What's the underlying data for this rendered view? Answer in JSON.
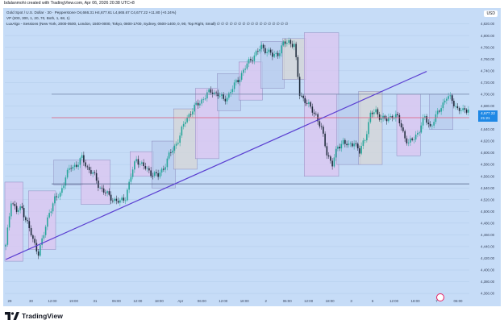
{
  "header": {
    "caption": "bdalanmohi created with TradingView.com, Apr 06, 2026 20:38 UTC+8"
  },
  "legend": {
    "symbol_line": "Gold Spot / U.S. Dollar · 30 · Pepperstone  O4,666.31  H4,677.61  L4,665.67  C4,677.22  +11.80 (+0.24%)",
    "vp_line": "VP (200, 300, 1, 20, 70, Both, 1, 68, 1)",
    "lux_line": "LuxAlgo - Sessions (New York, 2000-0500, London, 1500-0000, Tokyo, 0800-1700, Sydney, 0500-1400, 0, 90, Top Right, Small)  ∅ ∅ ∅ ∅ ∅ ∅ ∅ ∅ ∅ ∅ ∅ ∅ ∅ ∅ ∅ ∅ ∅"
  },
  "currency": "USD",
  "price_tag": {
    "price": "4,677.22",
    "countdown": "21:21"
  },
  "price_axis": {
    "ticks": [
      "4,820.00",
      "4,800.00",
      "4,780.00",
      "4,760.00",
      "4,740.00",
      "4,720.00",
      "4,700.00",
      "4,680.00",
      "4,660.00",
      "4,640.00",
      "4,620.00",
      "4,600.00",
      "4,580.00",
      "4,560.00",
      "4,540.00",
      "4,520.00",
      "4,500.00",
      "4,480.00",
      "4,460.00",
      "4,440.00",
      "4,420.00",
      "4,400.00",
      "4,380.00",
      "4,360.00"
    ],
    "range": [
      4356,
      4836
    ]
  },
  "time_axis": {
    "labels": [
      "29",
      "30",
      "12:00",
      "19:00",
      "31",
      "06:00",
      "12:00",
      "18:00",
      "Apr",
      "06:00",
      "12:00",
      "18:00",
      "2",
      "06:00",
      "12:00",
      "18:00",
      "3",
      "6",
      "12:00",
      "18:00",
      "7",
      "06:00"
    ]
  },
  "chart_data": {
    "type": "candlestick",
    "symbol": "Gold Spot / U.S. Dollar",
    "interval": "30",
    "source": "Pepperstone",
    "ohlc_last": {
      "open": 4666.31,
      "high": 4677.61,
      "low": 4665.67,
      "close": 4677.22,
      "change": 11.8,
      "change_pct": 0.24
    },
    "ylim": [
      4356,
      4836
    ],
    "path_points": [
      [
        0,
        4440
      ],
      [
        3,
        4520
      ],
      [
        6,
        4500
      ],
      [
        9,
        4505
      ],
      [
        12,
        4480
      ],
      [
        15,
        4450
      ],
      [
        18,
        4430
      ],
      [
        21,
        4460
      ],
      [
        24,
        4500
      ],
      [
        27,
        4520
      ],
      [
        30,
        4530
      ],
      [
        33,
        4560
      ],
      [
        36,
        4575
      ],
      [
        39,
        4580
      ],
      [
        42,
        4590
      ],
      [
        45,
        4575
      ],
      [
        48,
        4565
      ],
      [
        51,
        4545
      ],
      [
        54,
        4535
      ],
      [
        57,
        4525
      ],
      [
        60,
        4520
      ],
      [
        63,
        4515
      ],
      [
        66,
        4525
      ],
      [
        69,
        4560
      ],
      [
        72,
        4590
      ],
      [
        75,
        4580
      ],
      [
        78,
        4570
      ],
      [
        81,
        4565
      ],
      [
        84,
        4560
      ],
      [
        87,
        4575
      ],
      [
        90,
        4595
      ],
      [
        93,
        4610
      ],
      [
        96,
        4630
      ],
      [
        99,
        4655
      ],
      [
        102,
        4670
      ],
      [
        105,
        4680
      ],
      [
        108,
        4690
      ],
      [
        111,
        4700
      ],
      [
        114,
        4705
      ],
      [
        117,
        4700
      ],
      [
        120,
        4690
      ],
      [
        123,
        4700
      ],
      [
        126,
        4715
      ],
      [
        129,
        4730
      ],
      [
        132,
        4745
      ],
      [
        135,
        4760
      ],
      [
        138,
        4770
      ],
      [
        141,
        4780
      ],
      [
        144,
        4775
      ],
      [
        147,
        4765
      ],
      [
        150,
        4770
      ],
      [
        153,
        4785
      ],
      [
        156,
        4790
      ],
      [
        159,
        4785
      ],
      [
        162,
        4700
      ],
      [
        165,
        4690
      ],
      [
        168,
        4675
      ],
      [
        171,
        4665
      ],
      [
        174,
        4640
      ],
      [
        177,
        4600
      ],
      [
        180,
        4580
      ],
      [
        183,
        4610
      ],
      [
        186,
        4620
      ],
      [
        189,
        4610
      ],
      [
        192,
        4620
      ],
      [
        195,
        4600
      ],
      [
        198,
        4625
      ],
      [
        201,
        4665
      ],
      [
        204,
        4670
      ],
      [
        207,
        4660
      ],
      [
        210,
        4655
      ],
      [
        213,
        4665
      ],
      [
        216,
        4660
      ],
      [
        219,
        4635
      ],
      [
        222,
        4615
      ],
      [
        225,
        4625
      ],
      [
        228,
        4640
      ],
      [
        231,
        4660
      ],
      [
        234,
        4645
      ],
      [
        237,
        4660
      ],
      [
        240,
        4680
      ],
      [
        243,
        4695
      ],
      [
        246,
        4690
      ],
      [
        249,
        4675
      ],
      [
        252,
        4670
      ],
      [
        255,
        4677
      ]
    ],
    "horizontal_levels": [
      {
        "price": 4700,
        "color": "#6e7fa3"
      },
      {
        "price": 4660,
        "color": "#e05a78"
      },
      {
        "price": 4547,
        "color": "#4a5b80"
      }
    ],
    "trendline": {
      "from": [
        0,
        4418
      ],
      "to": [
        232,
        4739
      ],
      "color": "#5b3fd1"
    },
    "session_boxes": [
      {
        "from": 0,
        "to": 9,
        "top": 4550,
        "bottom": 4415,
        "color": "#dcc6f0"
      },
      {
        "from": 13,
        "to": 27,
        "top": 4535,
        "bottom": 4435,
        "color": "#dcc6f0"
      },
      {
        "from": 27,
        "to": 42,
        "top": 4588,
        "bottom": 4545,
        "color": "#b8ccee"
      },
      {
        "from": 42,
        "to": 57,
        "top": 4588,
        "bottom": 4512,
        "color": "#dcc6f0"
      },
      {
        "from": 69,
        "to": 81,
        "top": 4602,
        "bottom": 4560,
        "color": "#dcc6f0"
      },
      {
        "from": 81,
        "to": 93,
        "top": 4620,
        "bottom": 4540,
        "color": "#b8ccee"
      },
      {
        "from": 93,
        "to": 105,
        "top": 4675,
        "bottom": 4572,
        "color": "#d6d6d6"
      },
      {
        "from": 105,
        "to": 117,
        "top": 4710,
        "bottom": 4590,
        "color": "#dcc6f0"
      },
      {
        "from": 117,
        "to": 129,
        "top": 4735,
        "bottom": 4672,
        "color": "#b8ccee"
      },
      {
        "from": 129,
        "to": 141,
        "top": 4755,
        "bottom": 4690,
        "color": "#dcc6f0"
      },
      {
        "from": 141,
        "to": 153,
        "top": 4790,
        "bottom": 4710,
        "color": "#b8ccee"
      },
      {
        "from": 153,
        "to": 165,
        "top": 4795,
        "bottom": 4725,
        "color": "#d6d6d6"
      },
      {
        "from": 165,
        "to": 183,
        "top": 4805,
        "bottom": 4560,
        "color": "#dcc6f0"
      },
      {
        "from": 183,
        "to": 195,
        "top": 4700,
        "bottom": 4580,
        "color": "#b8ccee"
      },
      {
        "from": 195,
        "to": 207,
        "top": 4705,
        "bottom": 4580,
        "color": "#d6d6d6"
      },
      {
        "from": 216,
        "to": 228,
        "top": 4700,
        "bottom": 4595,
        "color": "#dcc6f0"
      },
      {
        "from": 234,
        "to": 246,
        "top": 4700,
        "bottom": 4640,
        "color": "#b8ccee"
      }
    ]
  },
  "branding": {
    "name": "TradingView"
  },
  "colors": {
    "background": "#c6dcf7",
    "up": "#26a69a",
    "down": "#1e2a3a",
    "accent": "#1e88e5"
  }
}
